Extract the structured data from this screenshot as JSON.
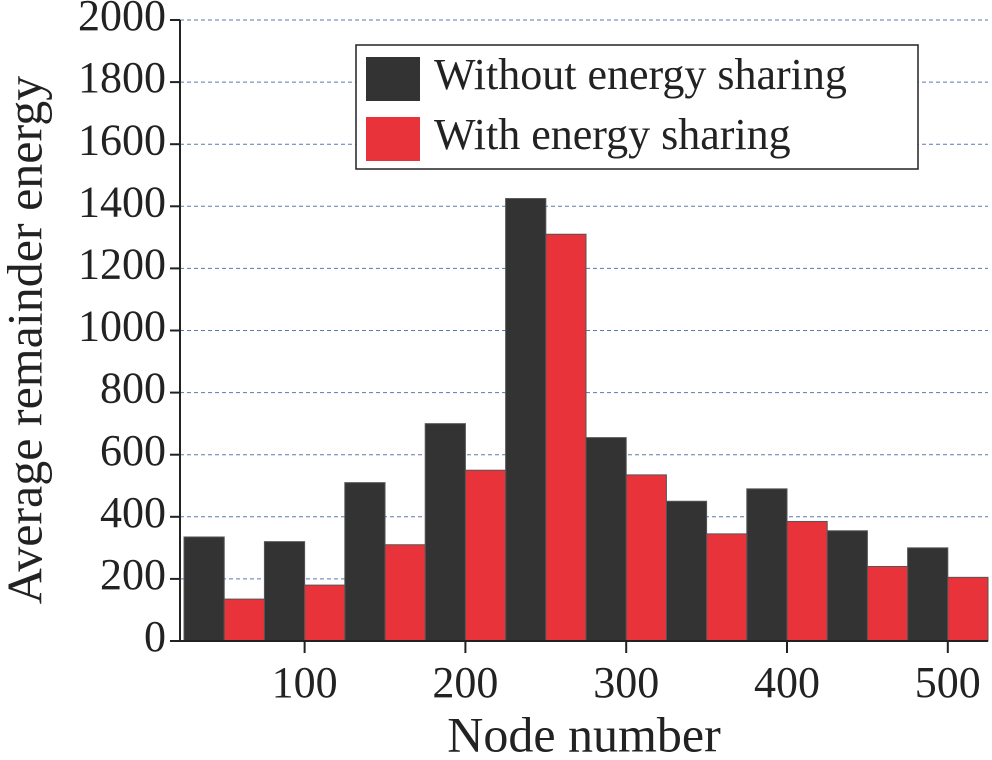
{
  "chart_data": {
    "type": "bar",
    "x_label": "Node number",
    "y_label": "Average remainder energy",
    "x": [
      50,
      100,
      150,
      200,
      250,
      300,
      350,
      400,
      450,
      500
    ],
    "series": [
      {
        "name": "Without energy sharing",
        "color": "#333333",
        "values": [
          335,
          320,
          510,
          700,
          1425,
          655,
          450,
          490,
          355,
          300
        ]
      },
      {
        "name": "With energy sharing",
        "color": "#e8333a",
        "values": [
          135,
          180,
          310,
          550,
          1310,
          535,
          345,
          385,
          240,
          205
        ]
      }
    ],
    "xlim": [
      22.5,
      525
    ],
    "xticks": [
      100,
      200,
      300,
      400,
      500
    ],
    "ylim": [
      0,
      2000
    ],
    "yticks": [
      0,
      200,
      400,
      600,
      800,
      1000,
      1200,
      1400,
      1600,
      1800,
      2000
    ],
    "grid": true,
    "legend": "top-right"
  }
}
